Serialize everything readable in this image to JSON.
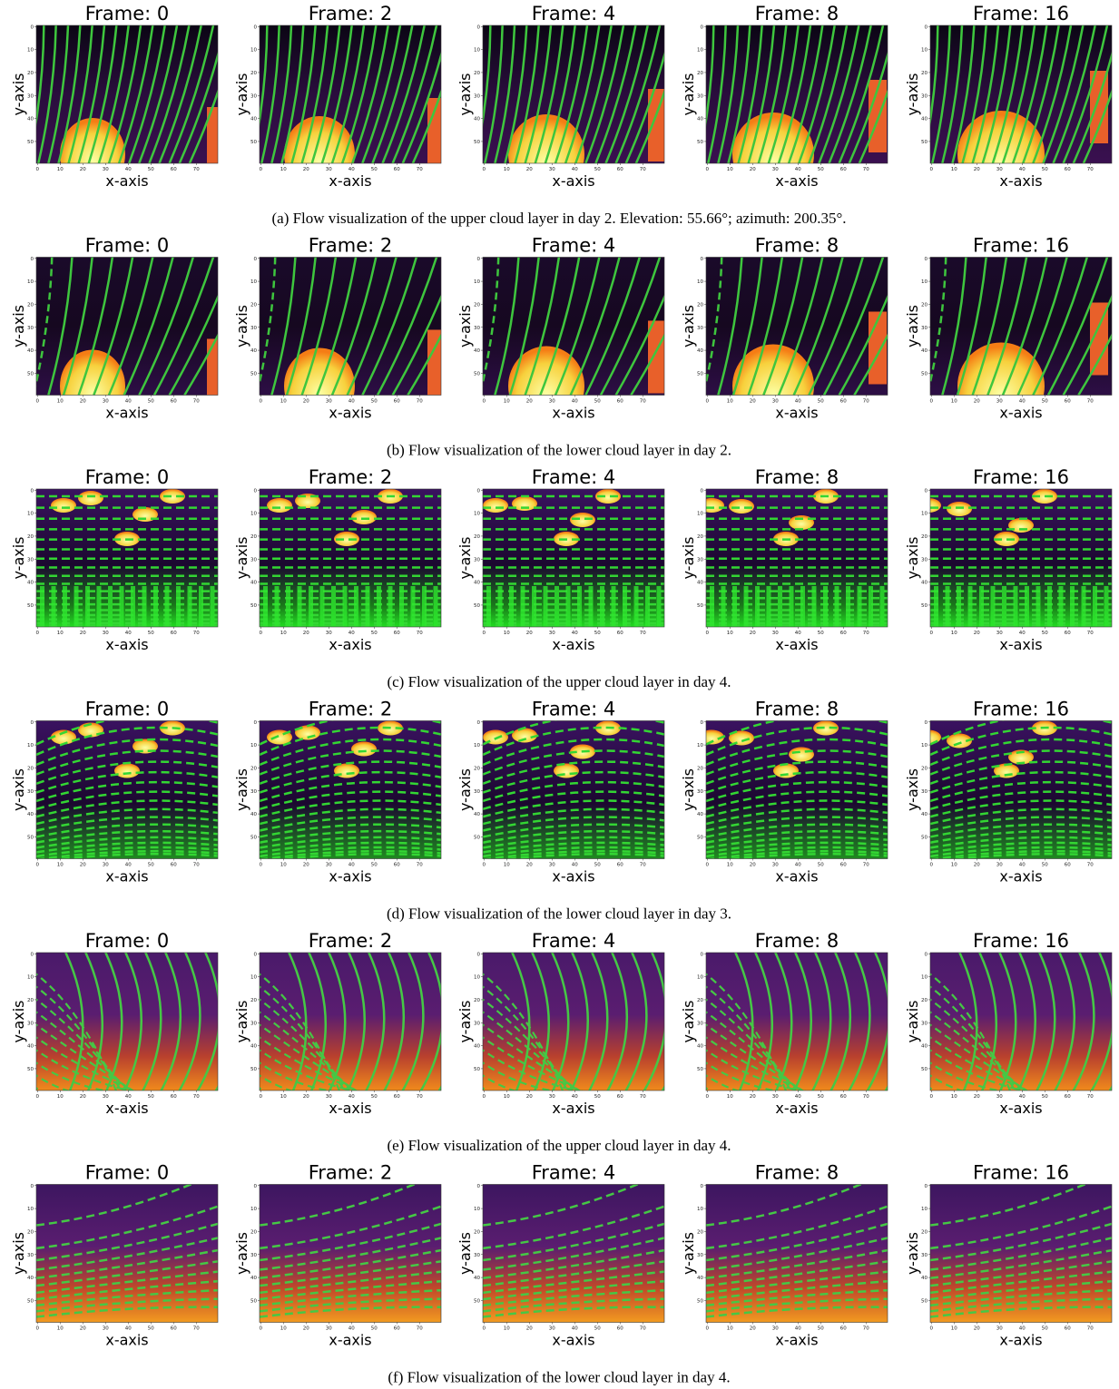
{
  "figure": {
    "rows": [
      {
        "caption": "(a) Flow visualization of the upper cloud layer in day 2. Elevation: 55.66°; azimuth: 200.35°.",
        "panels": [
          "Frame: 0",
          "Frame: 2",
          "Frame: 4",
          "Frame: 8",
          "Frame: 16"
        ]
      },
      {
        "caption": "(b) Flow visualization of the lower cloud layer in day 2.",
        "panels": [
          "Frame: 0",
          "Frame: 2",
          "Frame: 4",
          "Frame: 8",
          "Frame: 16"
        ]
      },
      {
        "caption": "(c) Flow visualization of the upper cloud layer in day 4.",
        "panels": [
          "Frame: 0",
          "Frame: 2",
          "Frame: 4",
          "Frame: 8",
          "Frame: 16"
        ]
      },
      {
        "caption": "(d) Flow visualization of the lower cloud layer in day 3.",
        "panels": [
          "Frame: 0",
          "Frame: 2",
          "Frame: 4",
          "Frame: 8",
          "Frame: 16"
        ]
      },
      {
        "caption": "(e) Flow visualization of the upper cloud layer in day 4.",
        "panels": [
          "Frame: 0",
          "Frame: 2",
          "Frame: 4",
          "Frame: 8",
          "Frame: 16"
        ]
      },
      {
        "caption": "(f) Flow visualization of the lower cloud layer in day 4.",
        "panels": [
          "Frame: 0",
          "Frame: 2",
          "Frame: 4",
          "Frame: 8",
          "Frame: 16"
        ]
      }
    ],
    "x_label": "x-axis",
    "y_label": "y-axis",
    "xticks": [
      0,
      10,
      20,
      30,
      40,
      50,
      60,
      70
    ],
    "yticks": [
      0,
      10,
      20,
      30,
      40,
      50
    ]
  }
}
